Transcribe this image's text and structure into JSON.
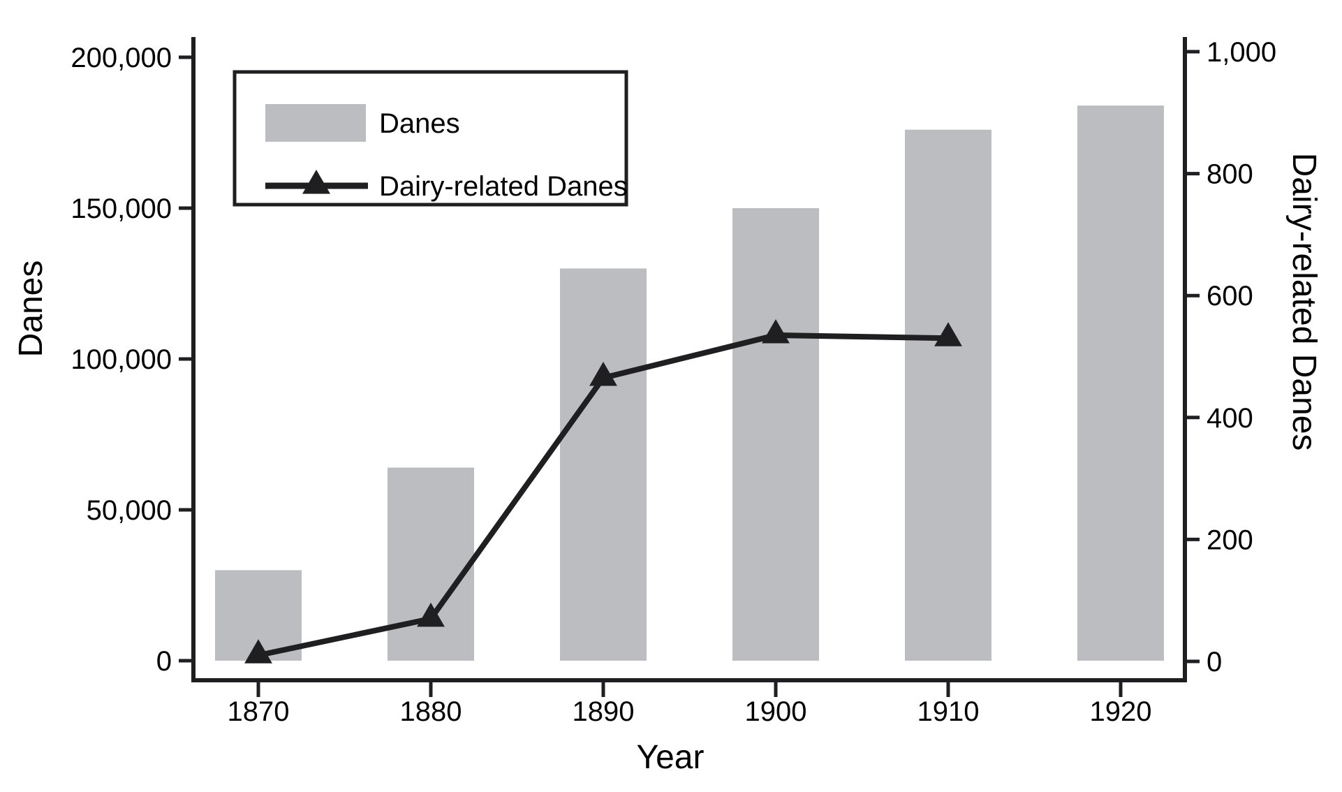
{
  "colors": {
    "background": "#ffffff",
    "bar": "#bcbdc1",
    "line": "#1f1f21",
    "axis": "#1f1f21",
    "text": "#000000"
  },
  "legend": {
    "position": "top-left-inside",
    "items": [
      {
        "label": "Danes",
        "marker": "bar-swatch"
      },
      {
        "label": "Dairy-related Danes",
        "marker": "line-with-triangle"
      }
    ]
  },
  "chart_data": {
    "type": "bar",
    "subtype": "dual-axis bar + line combo",
    "categories": [
      "1870",
      "1880",
      "1890",
      "1900",
      "1910",
      "1920"
    ],
    "series": [
      {
        "name": "Danes",
        "type": "bar",
        "axis": "left",
        "values": [
          30000,
          64000,
          130000,
          150000,
          176000,
          184000
        ]
      },
      {
        "name": "Dairy-related Danes",
        "type": "line",
        "axis": "right",
        "marker": "filled-triangle-up",
        "values": [
          10,
          70,
          465,
          535,
          530,
          null
        ]
      }
    ],
    "title": "",
    "xlabel": "Year",
    "ylabel_left": "Danes",
    "ylabel_right": "Dairy-related Danes",
    "ylim_left": [
      0,
      200000
    ],
    "ylim_right": [
      0,
      1000
    ],
    "yticks_left": {
      "values": [
        0,
        50000,
        100000,
        150000,
        200000
      ],
      "labels": [
        "0",
        "50,000",
        "100,000",
        "150,000",
        "200,000"
      ]
    },
    "yticks_right": {
      "values": [
        0,
        200,
        400,
        600,
        800,
        1000
      ],
      "labels": [
        "0",
        "200",
        "400",
        "600",
        "800",
        "1,000"
      ]
    },
    "grid": "off",
    "legend_position": "top-left-inside"
  }
}
